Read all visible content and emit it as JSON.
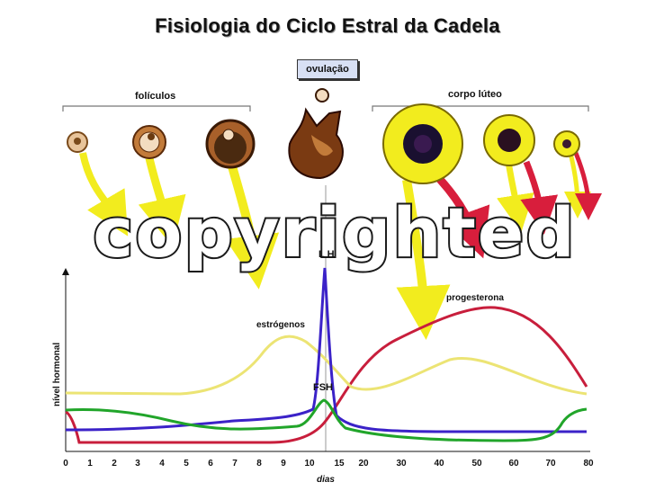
{
  "title": "Fisiologia do Ciclo Estral da Cadela",
  "ovulation_label": "ovulação",
  "follicles_label": "folículos",
  "corpus_luteum_label": "corpo lúteo",
  "watermark": "copyrighted",
  "y_axis_label": "nível hormonal",
  "x_axis_label": "dias",
  "x_ticks": [
    "0",
    "1",
    "2",
    "3",
    "4",
    "5",
    "6",
    "7",
    "8",
    "9",
    "10",
    "15",
    "20",
    "30",
    "40",
    "50",
    "60",
    "70",
    "80"
  ],
  "hormones": {
    "lh": "L H",
    "fsh": "FSH",
    "estrogen": "estrógenos",
    "progesterone": "progesterona"
  },
  "colors": {
    "lh": "#3b22c8",
    "fsh": "#21a52a",
    "estrogen": "#ece474",
    "progesterone": "#c81e3c",
    "follicle_yellow": "#f2ec1e",
    "luteum_red": "#d81e3c"
  }
}
